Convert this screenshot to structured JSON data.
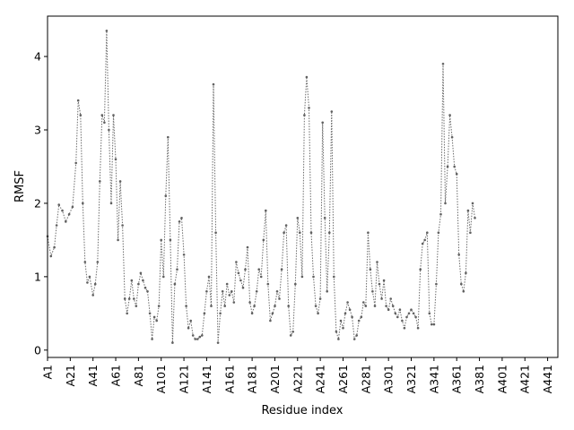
{
  "chart_data": {
    "type": "line",
    "title": "",
    "xlabel": "Residue index",
    "ylabel": "RMSF",
    "xlim": [
      0,
      449
    ],
    "ylim": [
      -0.1,
      4.55
    ],
    "x_ticks": [
      {
        "x": 0,
        "label": "A1"
      },
      {
        "x": 20,
        "label": "A21"
      },
      {
        "x": 40,
        "label": "A41"
      },
      {
        "x": 60,
        "label": "A61"
      },
      {
        "x": 80,
        "label": "A81"
      },
      {
        "x": 100,
        "label": "A101"
      },
      {
        "x": 120,
        "label": "A121"
      },
      {
        "x": 140,
        "label": "A141"
      },
      {
        "x": 160,
        "label": "A161"
      },
      {
        "x": 180,
        "label": "A181"
      },
      {
        "x": 200,
        "label": "A201"
      },
      {
        "x": 220,
        "label": "A221"
      },
      {
        "x": 240,
        "label": "A241"
      },
      {
        "x": 260,
        "label": "A261"
      },
      {
        "x": 280,
        "label": "A281"
      },
      {
        "x": 300,
        "label": "A301"
      },
      {
        "x": 320,
        "label": "A321"
      },
      {
        "x": 340,
        "label": "A341"
      },
      {
        "x": 360,
        "label": "A361"
      },
      {
        "x": 380,
        "label": "A381"
      },
      {
        "x": 400,
        "label": "A401"
      },
      {
        "x": 420,
        "label": "A421"
      },
      {
        "x": 440,
        "label": "A441"
      }
    ],
    "y_ticks": [
      {
        "y": 0,
        "label": "0"
      },
      {
        "y": 1,
        "label": "1"
      },
      {
        "y": 2,
        "label": "2"
      },
      {
        "y": 3,
        "label": "3"
      },
      {
        "y": 4,
        "label": "4"
      }
    ],
    "grid": false,
    "series": [
      {
        "color": "#6b6b6b",
        "points": [
          [
            0,
            1.55
          ],
          [
            3,
            1.28
          ],
          [
            6,
            1.4
          ],
          [
            8,
            1.7
          ],
          [
            10,
            1.98
          ],
          [
            13,
            1.9
          ],
          [
            16,
            1.75
          ],
          [
            19,
            1.85
          ],
          [
            22,
            1.95
          ],
          [
            25,
            2.55
          ],
          [
            27,
            3.4
          ],
          [
            29,
            3.2
          ],
          [
            31,
            2.0
          ],
          [
            33,
            1.2
          ],
          [
            35,
            0.92
          ],
          [
            37,
            1.0
          ],
          [
            40,
            0.75
          ],
          [
            42,
            0.9
          ],
          [
            44,
            1.2
          ],
          [
            46,
            2.3
          ],
          [
            48,
            3.2
          ],
          [
            50,
            3.1
          ],
          [
            52,
            4.35
          ],
          [
            54,
            3.0
          ],
          [
            56,
            2.0
          ],
          [
            58,
            3.2
          ],
          [
            60,
            2.6
          ],
          [
            62,
            1.5
          ],
          [
            64,
            2.3
          ],
          [
            66,
            1.7
          ],
          [
            68,
            0.7
          ],
          [
            70,
            0.5
          ],
          [
            72,
            0.7
          ],
          [
            74,
            0.95
          ],
          [
            76,
            0.7
          ],
          [
            78,
            0.6
          ],
          [
            80,
            0.9
          ],
          [
            82,
            1.05
          ],
          [
            84,
            0.95
          ],
          [
            86,
            0.85
          ],
          [
            88,
            0.8
          ],
          [
            90,
            0.5
          ],
          [
            92,
            0.15
          ],
          [
            94,
            0.45
          ],
          [
            96,
            0.4
          ],
          [
            98,
            0.6
          ],
          [
            100,
            1.5
          ],
          [
            102,
            1.0
          ],
          [
            104,
            2.1
          ],
          [
            106,
            2.9
          ],
          [
            108,
            1.5
          ],
          [
            110,
            0.1
          ],
          [
            112,
            0.9
          ],
          [
            114,
            1.1
          ],
          [
            116,
            1.75
          ],
          [
            118,
            1.8
          ],
          [
            120,
            1.3
          ],
          [
            122,
            0.6
          ],
          [
            124,
            0.3
          ],
          [
            126,
            0.4
          ],
          [
            128,
            0.2
          ],
          [
            130,
            0.15
          ],
          [
            132,
            0.15
          ],
          [
            134,
            0.18
          ],
          [
            136,
            0.2
          ],
          [
            138,
            0.5
          ],
          [
            140,
            0.8
          ],
          [
            142,
            1.0
          ],
          [
            144,
            0.6
          ],
          [
            146,
            3.62
          ],
          [
            148,
            1.6
          ],
          [
            150,
            0.1
          ],
          [
            152,
            0.5
          ],
          [
            154,
            0.8
          ],
          [
            156,
            0.6
          ],
          [
            158,
            0.9
          ],
          [
            160,
            0.75
          ],
          [
            162,
            0.8
          ],
          [
            164,
            0.65
          ],
          [
            166,
            1.2
          ],
          [
            168,
            1.05
          ],
          [
            170,
            0.95
          ],
          [
            172,
            0.85
          ],
          [
            174,
            1.1
          ],
          [
            176,
            1.4
          ],
          [
            178,
            0.65
          ],
          [
            180,
            0.5
          ],
          [
            182,
            0.6
          ],
          [
            184,
            0.8
          ],
          [
            186,
            1.1
          ],
          [
            188,
            1.0
          ],
          [
            190,
            1.5
          ],
          [
            192,
            1.9
          ],
          [
            194,
            0.9
          ],
          [
            196,
            0.4
          ],
          [
            198,
            0.5
          ],
          [
            200,
            0.6
          ],
          [
            202,
            0.8
          ],
          [
            204,
            0.7
          ],
          [
            206,
            1.1
          ],
          [
            208,
            1.6
          ],
          [
            210,
            1.7
          ],
          [
            212,
            0.6
          ],
          [
            214,
            0.2
          ],
          [
            216,
            0.25
          ],
          [
            218,
            0.9
          ],
          [
            220,
            1.8
          ],
          [
            222,
            1.6
          ],
          [
            224,
            1.0
          ],
          [
            226,
            3.2
          ],
          [
            228,
            3.72
          ],
          [
            230,
            3.3
          ],
          [
            232,
            1.6
          ],
          [
            234,
            1.0
          ],
          [
            236,
            0.6
          ],
          [
            238,
            0.5
          ],
          [
            240,
            0.7
          ],
          [
            242,
            3.1
          ],
          [
            244,
            1.8
          ],
          [
            246,
            0.8
          ],
          [
            248,
            1.6
          ],
          [
            250,
            3.25
          ],
          [
            252,
            1.0
          ],
          [
            254,
            0.25
          ],
          [
            256,
            0.15
          ],
          [
            258,
            0.4
          ],
          [
            260,
            0.3
          ],
          [
            262,
            0.5
          ],
          [
            264,
            0.65
          ],
          [
            266,
            0.55
          ],
          [
            268,
            0.45
          ],
          [
            270,
            0.15
          ],
          [
            272,
            0.2
          ],
          [
            274,
            0.4
          ],
          [
            276,
            0.45
          ],
          [
            278,
            0.65
          ],
          [
            280,
            0.6
          ],
          [
            282,
            1.6
          ],
          [
            284,
            1.1
          ],
          [
            286,
            0.8
          ],
          [
            288,
            0.6
          ],
          [
            290,
            1.2
          ],
          [
            292,
            0.9
          ],
          [
            294,
            0.7
          ],
          [
            296,
            0.95
          ],
          [
            298,
            0.6
          ],
          [
            300,
            0.55
          ],
          [
            302,
            0.7
          ],
          [
            304,
            0.6
          ],
          [
            306,
            0.5
          ],
          [
            308,
            0.45
          ],
          [
            310,
            0.55
          ],
          [
            312,
            0.4
          ],
          [
            314,
            0.3
          ],
          [
            316,
            0.45
          ],
          [
            318,
            0.5
          ],
          [
            320,
            0.55
          ],
          [
            322,
            0.5
          ],
          [
            324,
            0.45
          ],
          [
            326,
            0.3
          ],
          [
            328,
            1.1
          ],
          [
            330,
            1.45
          ],
          [
            332,
            1.5
          ],
          [
            334,
            1.6
          ],
          [
            336,
            0.5
          ],
          [
            338,
            0.35
          ],
          [
            340,
            0.35
          ],
          [
            342,
            0.9
          ],
          [
            344,
            1.6
          ],
          [
            346,
            1.85
          ],
          [
            348,
            3.9
          ],
          [
            350,
            2.0
          ],
          [
            352,
            2.5
          ],
          [
            354,
            3.2
          ],
          [
            356,
            2.9
          ],
          [
            358,
            2.5
          ],
          [
            360,
            2.4
          ],
          [
            362,
            1.3
          ],
          [
            364,
            0.9
          ],
          [
            366,
            0.8
          ],
          [
            368,
            1.05
          ],
          [
            370,
            1.9
          ],
          [
            372,
            1.6
          ],
          [
            374,
            2.0
          ],
          [
            376,
            1.8
          ]
        ]
      }
    ]
  }
}
